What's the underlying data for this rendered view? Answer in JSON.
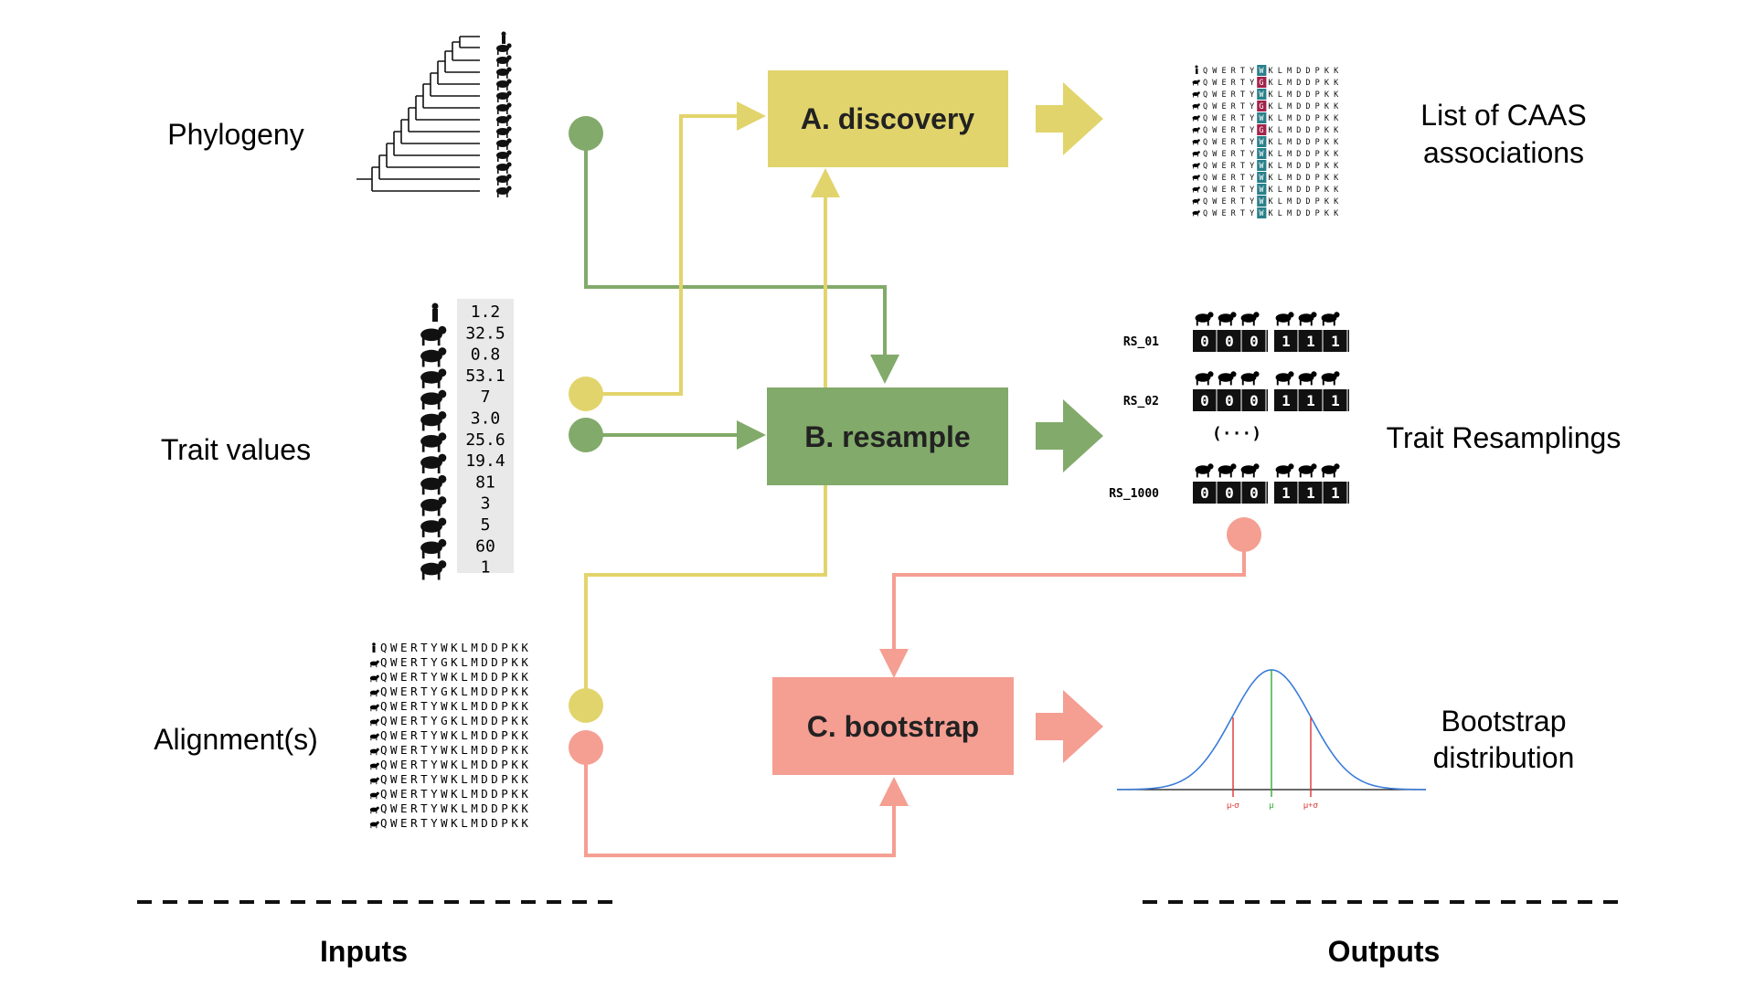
{
  "inputs": {
    "phylogeny_label": "Phylogeny",
    "trait_values_label": "Trait values",
    "alignment_label": "Alignment(s)",
    "trait_values": [
      "1.2",
      "32.5",
      "0.8",
      "53.1",
      "7",
      "3.0",
      "25.6",
      "19.4",
      "81",
      "3",
      "5",
      "60",
      "1"
    ],
    "alignment_rows": [
      "QWERTYWKLMDDPKK",
      "QWERTYGKLMDDPKK",
      "QWERTYWKLMDDPKK",
      "QWERTYGKLMDDPKK",
      "QWERTYWKLMDDPKK",
      "QWERTYGKLMDDPKK",
      "QWERTYWKLMDDPKK",
      "QWERTYWKLMDDPKK",
      "QWERTYWKLMDDPKK",
      "QWERTYWKLMDDPKK",
      "QWERTYWKLMDDPKK",
      "QWERTYWKLMDDPKK",
      "QWERTYWKLMDDPKK"
    ]
  },
  "steps": {
    "discovery": "A. discovery",
    "resample": "B. resample",
    "bootstrap": "C. bootstrap"
  },
  "outputs": {
    "caas_label_line1": "List of CAAS",
    "caas_label_line2": "associations",
    "resamplings_label": "Trait Resamplings",
    "bootstrap_label_line1": "Bootstrap",
    "bootstrap_label_line2": "distribution",
    "caas_rows": [
      "QWERTYWKLMDDPKK",
      "QWERTYGKLMDDPKK",
      "QWERTYWKLMDDPKK",
      "QWERTYGKLMDDPKK",
      "QWERTYWKLMDDPKK",
      "QWERTYGKLMDDPKK",
      "QWERTYWKLMDDPKK",
      "QWERTYWKLMDDPKK",
      "QWERTYWKLMDDPKK",
      "QWERTYWKLMDDPKK",
      "QWERTYWKLMDDPKK",
      "QWERTYWKLMDDPKK",
      "QWERTYWKLMDDPKK"
    ],
    "resamplings": [
      {
        "id": "RS_01",
        "bits": "000",
        "bits2": "111"
      },
      {
        "id": "RS_02",
        "bits": "000",
        "bits2": "111"
      },
      {
        "id": "RS_1000",
        "bits": "000",
        "bits2": "111"
      }
    ],
    "ellipsis": "(···)",
    "dist_markers": [
      "μ-σ",
      "μ",
      "μ+σ"
    ]
  },
  "footer": {
    "inputs": "Inputs",
    "outputs": "Outputs"
  },
  "colors": {
    "discovery": "#e2d46c",
    "resample": "#82aa6a",
    "bootstrap": "#f59e92",
    "yellow_line": "#e2d46c",
    "green_line": "#82aa6a",
    "red_line": "#f59e92",
    "teal": "#2a7f8a",
    "crimson": "#a3234a",
    "curve": "#3b7dd8"
  }
}
